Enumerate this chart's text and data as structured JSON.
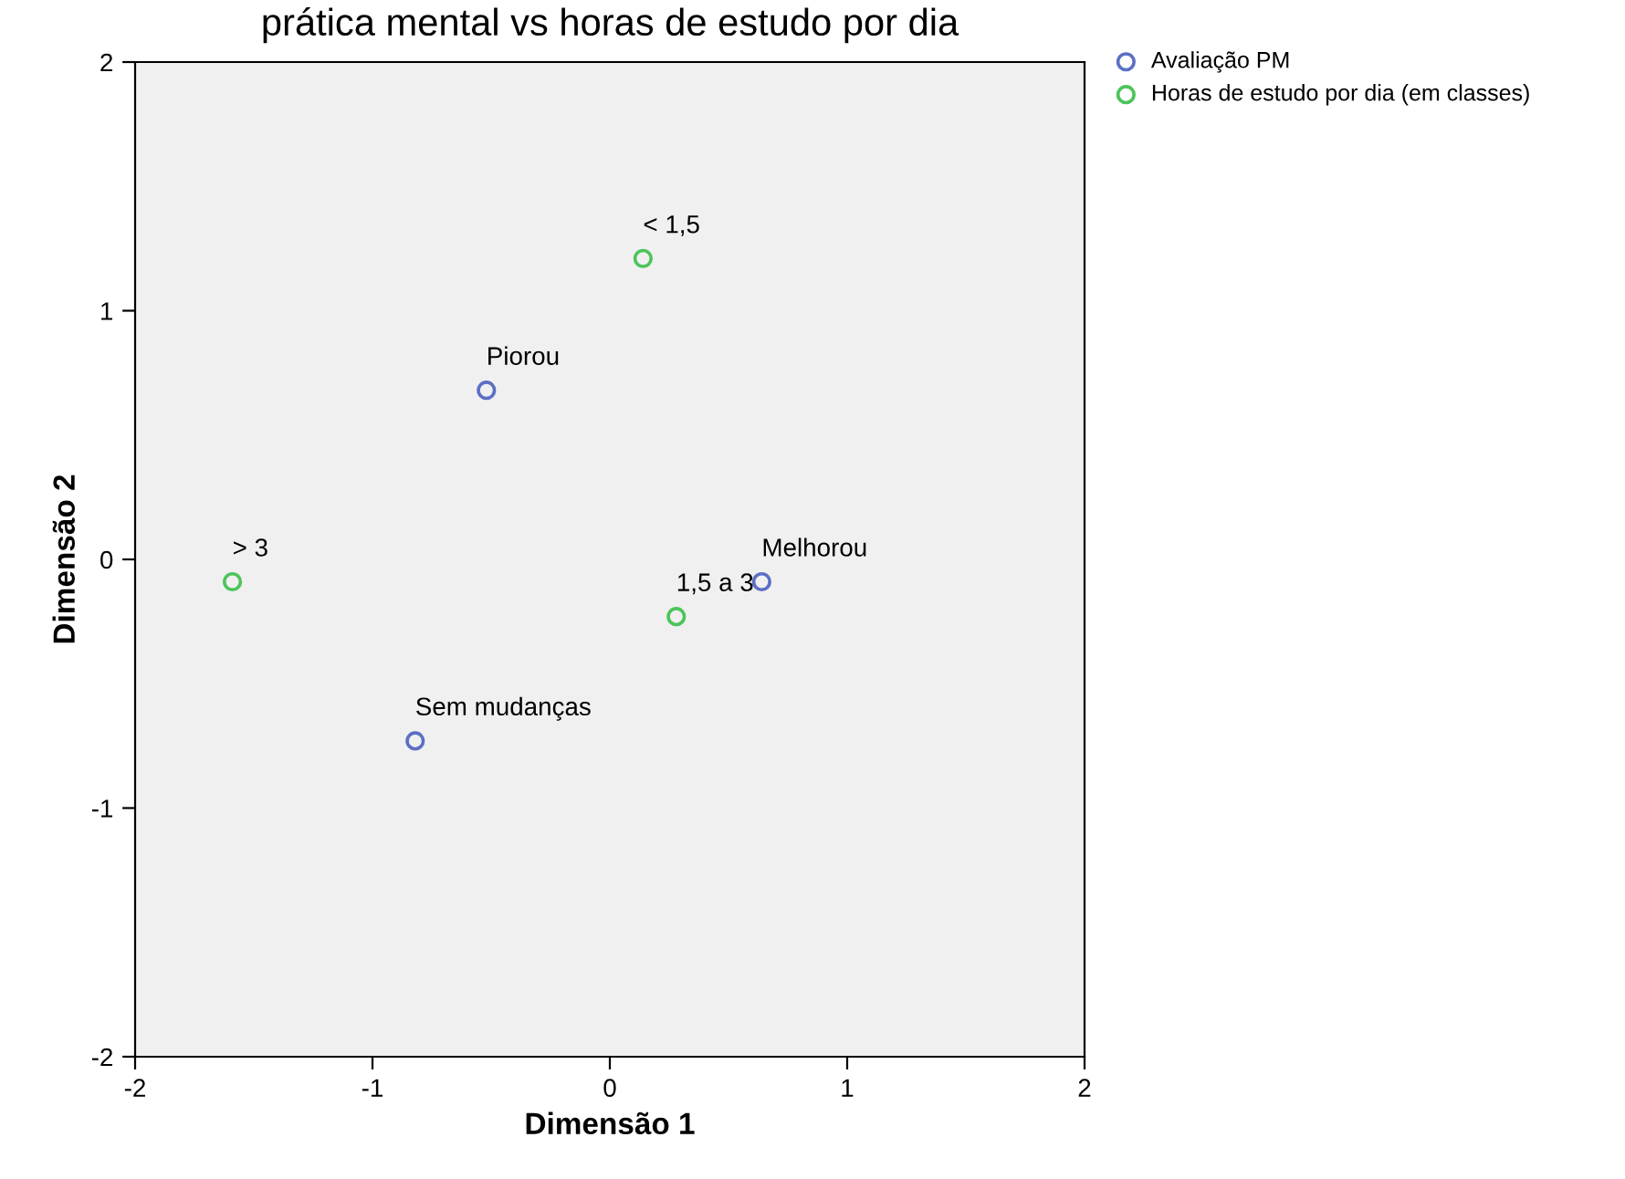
{
  "chart_data": {
    "type": "scatter",
    "title": "prática mental vs horas de estudo por dia",
    "xlabel": "Dimensão 1",
    "ylabel": "Dimensão 2",
    "series": [
      {
        "name": "Avaliação PM",
        "color": "#5b6fc4",
        "x": [
          -0.52,
          0.64,
          -0.82
        ],
        "values": [
          0.68,
          -0.09,
          -0.73
        ]
      },
      {
        "name": "Horas de estudo por dia (em classes)",
        "color": "#4cc45a",
        "x": [
          0.14,
          0.28,
          -1.59
        ],
        "values": [
          1.21,
          -0.23,
          -0.09
        ]
      }
    ],
    "annotations": [
      {
        "text": "Piorou",
        "x": -0.52,
        "y": 0.68
      },
      {
        "text": "Melhorou",
        "x": 0.64,
        "y": -0.09
      },
      {
        "text": "Sem mudanças",
        "x": -0.82,
        "y": -0.73
      },
      {
        "text": "< 1,5",
        "x": 0.14,
        "y": 1.21
      },
      {
        "text": "1,5 a 3",
        "x": 0.28,
        "y": -0.23
      },
      {
        "text": "> 3",
        "x": -1.59,
        "y": -0.09
      }
    ],
    "xlim": [
      -2,
      2
    ],
    "ylim": [
      -2,
      2
    ],
    "xticks": [
      -2,
      -1,
      0,
      1,
      2
    ],
    "yticks": [
      -2,
      -1,
      0,
      1,
      2
    ],
    "grid": false,
    "legend": "top right",
    "marker": "circle"
  }
}
